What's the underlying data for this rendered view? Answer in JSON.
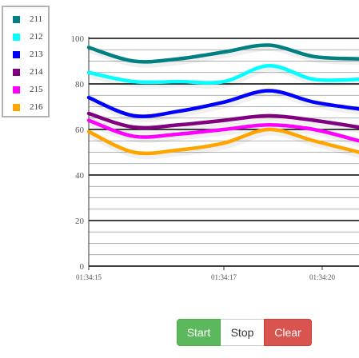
{
  "chart_data": {
    "type": "line",
    "ylim": [
      0,
      100
    ],
    "y_ticks": [
      0,
      20,
      40,
      60,
      80,
      100
    ],
    "x_tick_labels": [
      "01:34:15",
      "01:34:17",
      "01:34:20"
    ],
    "x": [
      0,
      1,
      2,
      3,
      4,
      5,
      6
    ],
    "grid": true,
    "legend": "top-left",
    "series": [
      {
        "name": "211",
        "color": "#008080",
        "values": [
          96,
          90,
          91,
          94,
          97,
          92,
          91
        ]
      },
      {
        "name": "212",
        "color": "#00ffff",
        "values": [
          85,
          81,
          81,
          81,
          88,
          82,
          82
        ]
      },
      {
        "name": "213",
        "color": "#0000ff",
        "values": [
          74,
          66,
          68,
          72,
          77,
          72,
          69
        ]
      },
      {
        "name": "214",
        "color": "#800080",
        "values": [
          67,
          61,
          62,
          64,
          66,
          64,
          61
        ]
      },
      {
        "name": "215",
        "color": "#ff00ff",
        "values": [
          64,
          57,
          58,
          60,
          62,
          60,
          55
        ]
      },
      {
        "name": "216",
        "color": "#ffa500",
        "values": [
          59,
          50,
          51,
          54,
          60,
          55,
          50
        ]
      }
    ]
  },
  "controls": {
    "start_label": "Start",
    "stop_label": "Stop",
    "clear_label": "Clear"
  }
}
